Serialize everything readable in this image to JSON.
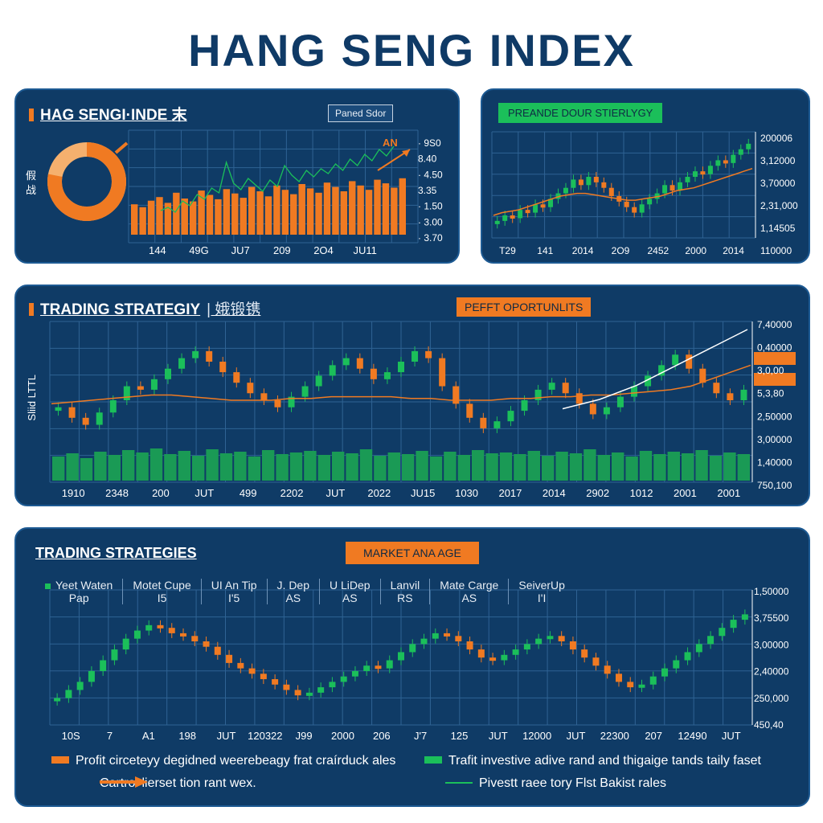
{
  "page_title": "HANG SENG INDEX",
  "colors": {
    "background": "#0f3b66",
    "up": "#1bbf5a",
    "down": "#f07a22",
    "grid": "#2f6394",
    "text": "#ffffff",
    "accent_line_white": "#ffffff"
  },
  "panel1": {
    "title": "HAG SENGI·INDE",
    "title_suffix": "末",
    "badge": "Paned Sdor",
    "side_text": "假 战",
    "annotation": "AN",
    "donut_color": "#f07a22"
  },
  "panel2": {
    "badge": "PREANDE DOUR STIERLYGY"
  },
  "panel3": {
    "title": "TRADING STRATEGIY",
    "title_suffix": "| 娥锻镌",
    "badge": "PEFFT OPORTUNLITS",
    "side_label": "Sliid LTTL"
  },
  "panel4": {
    "title": "TRADING STRATEGIES",
    "badge": "MARKET ANA AGE",
    "headers": [
      {
        "name": "Yeet Waten",
        "sub": "Pap"
      },
      {
        "name": "Motet Cupe",
        "sub": "I5"
      },
      {
        "name": "UI An Tip",
        "sub": "I'5"
      },
      {
        "name": "J. Dep",
        "sub": "AS"
      },
      {
        "name": "U LiDep",
        "sub": "AS"
      },
      {
        "name": "Lanvil",
        "sub": "RS"
      },
      {
        "name": "Mate Carge",
        "sub": "AS"
      },
      {
        "name": "SeiverUp",
        "sub": "I'I"
      }
    ],
    "legend": {
      "orange_box": "Profit circeteyy degidned weerebeagy frat craírduck ales",
      "green_box": "Trafit investive adive rand and thigaige tands taily faset",
      "orange_arrow": "Cartrol lierset tion rant wex.",
      "green_line": "Pivestt raee tory Flst Bakist rales"
    }
  },
  "chart_data": [
    {
      "type": "bar",
      "panel": "panel1",
      "x_tick_labels": [
        "144",
        "49G",
        "JU7",
        "209",
        "2O4",
        "JU11"
      ],
      "y_tick_labels": [
        "· 9S0",
        "8.40",
        "· 4.50",
        "3.35",
        "· 1.50",
        "· 3.00",
        "· 3.70"
      ],
      "bars": [
        42,
        38,
        47,
        52,
        44,
        58,
        50,
        46,
        61,
        55,
        49,
        63,
        57,
        51,
        66,
        60,
        53,
        68,
        62,
        56,
        70,
        64,
        58,
        72,
        66,
        60,
        74,
        68,
        62,
        76,
        71,
        65,
        78
      ],
      "line": [
        60,
        62,
        59,
        66,
        63,
        70,
        67,
        74,
        71,
        90,
        77,
        73,
        80,
        76,
        72,
        79,
        75,
        88,
        82,
        78,
        85,
        81,
        86,
        83,
        89,
        85,
        92,
        88,
        95,
        91,
        98,
        94,
        100
      ],
      "donut_fraction": 0.78
    },
    {
      "type": "line",
      "panel": "panel2",
      "x_tick_labels": [
        "T29",
        "141",
        "2014",
        "2O9",
        "2452",
        "2000",
        "2014"
      ],
      "y_tick_labels": [
        "200006",
        "3,12000",
        "3,70000",
        "2,31,000",
        "1,14505",
        "110000"
      ],
      "candles": [
        40,
        44,
        42,
        48,
        46,
        52,
        50,
        56,
        60,
        64,
        70,
        66,
        72,
        68,
        64,
        58,
        54,
        50,
        46,
        52,
        56,
        60,
        66,
        62,
        68,
        72,
        76,
        74,
        80,
        84,
        82,
        88,
        92,
        96
      ],
      "trend": [
        44,
        46,
        47,
        48,
        50,
        52,
        54,
        56,
        58,
        59,
        60,
        60,
        59,
        58,
        57,
        56,
        55,
        55,
        56,
        57,
        58,
        60,
        62,
        63,
        64,
        66,
        68,
        70,
        72,
        74,
        76,
        78
      ]
    },
    {
      "type": "line",
      "panel": "panel3",
      "x_tick_labels": [
        "1910",
        "2348",
        "200",
        "JUT",
        "499",
        "2202",
        "JUT",
        "2022",
        "JU15",
        "1030",
        "2017",
        "2014",
        "2902",
        "1012",
        "2001",
        "2001"
      ],
      "y_tick_labels": [
        "7,40000",
        "0,40000",
        "3,0,00",
        "5,3,80",
        "2,50000",
        "3,00000",
        "1,40000",
        "750,100"
      ],
      "candles": [
        58,
        52,
        48,
        55,
        62,
        70,
        68,
        74,
        80,
        86,
        90,
        84,
        78,
        72,
        66,
        62,
        58,
        64,
        70,
        76,
        82,
        86,
        80,
        74,
        78,
        84,
        90,
        86,
        70,
        60,
        52,
        46,
        50,
        56,
        62,
        68,
        72,
        66,
        60,
        54,
        58,
        64,
        70,
        76,
        82,
        88,
        80,
        72,
        66,
        62,
        68
      ],
      "trend": [
        60,
        61,
        62,
        63,
        64,
        65,
        65,
        64,
        63,
        62,
        62,
        62,
        63,
        63,
        64,
        64,
        64,
        64,
        63,
        63,
        62,
        62,
        62,
        63,
        63,
        64,
        64,
        65,
        65,
        66,
        67,
        68,
        70,
        74,
        78,
        82
      ],
      "white_line": [
        66,
        70,
        76,
        84,
        92,
        100
      ],
      "volume": [
        30,
        34,
        28,
        36,
        32,
        38,
        35,
        40,
        33,
        37,
        31,
        39,
        34,
        36,
        30,
        38,
        33,
        35,
        37,
        32,
        36,
        34,
        39,
        31,
        35,
        33,
        37,
        30,
        36,
        32,
        38,
        34,
        35,
        33,
        37,
        31,
        36,
        34,
        39,
        32,
        35,
        30,
        37,
        33,
        36,
        34,
        38,
        31,
        35,
        33
      ]
    },
    {
      "type": "line",
      "panel": "panel4",
      "x_tick_labels": [
        "10S",
        "7",
        "A1",
        "198",
        "JUT",
        "120322",
        "J99",
        "2000",
        "206",
        "J'7",
        "125",
        "JUT",
        "12000",
        "JUT",
        "22300",
        "207",
        "12490",
        "JUT"
      ],
      "y_tick_labels": [
        "1,50000",
        "3,75500",
        "3,00000",
        "2,40000",
        "250,000",
        "450,40"
      ],
      "candles": [
        28,
        34,
        40,
        48,
        56,
        64,
        72,
        78,
        82,
        80,
        76,
        74,
        70,
        66,
        60,
        54,
        50,
        46,
        42,
        38,
        34,
        30,
        32,
        36,
        40,
        44,
        48,
        52,
        50,
        56,
        62,
        68,
        72,
        76,
        74,
        70,
        64,
        58,
        56,
        60,
        64,
        68,
        72,
        74,
        70,
        64,
        58,
        52,
        46,
        40,
        36,
        38,
        44,
        50,
        56,
        62,
        68,
        74,
        80,
        86,
        90
      ]
    }
  ]
}
